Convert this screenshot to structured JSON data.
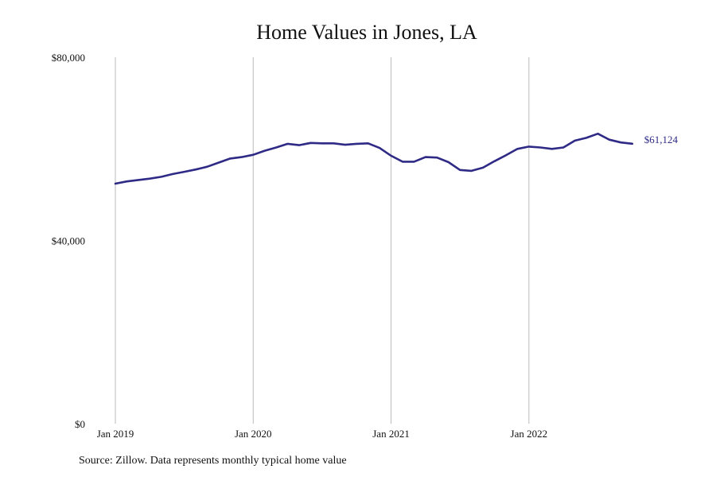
{
  "chart_data": {
    "type": "line",
    "title": "Home Values in Jones, LA",
    "xlabel": "",
    "ylabel": "",
    "source": "Source: Zillow. Data represents monthly typical home value",
    "ylim": [
      0,
      80000
    ],
    "grid": "vertical lines at year ticks",
    "legend": "none",
    "y_ticks": [
      {
        "value": 0,
        "label": "$0"
      },
      {
        "value": 40000,
        "label": "$40,000"
      },
      {
        "value": 80000,
        "label": "$80,000"
      }
    ],
    "x_ticks": [
      {
        "value": "2019-01",
        "label": "Jan 2019"
      },
      {
        "value": "2020-01",
        "label": "Jan 2020"
      },
      {
        "value": "2021-01",
        "label": "Jan 2021"
      },
      {
        "value": "2022-01",
        "label": "Jan 2022"
      }
    ],
    "end_label": "$61,124",
    "line_color": "#2e2a85",
    "grid_color": "#bbbbbb",
    "series": [
      {
        "x": [
          "2019-01",
          "2019-02",
          "2019-03",
          "2019-04",
          "2019-05",
          "2019-06",
          "2019-07",
          "2019-08",
          "2019-09",
          "2019-10",
          "2019-11",
          "2019-12",
          "2020-01",
          "2020-02",
          "2020-03",
          "2020-04",
          "2020-05",
          "2020-06",
          "2020-07",
          "2020-08",
          "2020-09",
          "2020-10",
          "2020-11",
          "2020-12",
          "2021-01",
          "2021-02",
          "2021-03",
          "2021-04",
          "2021-05",
          "2021-06",
          "2021-07",
          "2021-08",
          "2021-09",
          "2021-10",
          "2021-11",
          "2021-12",
          "2022-01",
          "2022-02",
          "2022-03",
          "2022-04",
          "2022-05",
          "2022-06",
          "2022-07",
          "2022-08",
          "2022-09",
          "2022-10"
        ],
        "values": [
          52400,
          52900,
          53200,
          53500,
          53900,
          54500,
          55000,
          55500,
          56100,
          57000,
          57900,
          58200,
          58700,
          59600,
          60300,
          61100,
          60800,
          61300,
          61200,
          61200,
          60900,
          61100,
          61200,
          60200,
          58500,
          57200,
          57200,
          58200,
          58100,
          57100,
          55400,
          55200,
          55900,
          57300,
          58600,
          60000,
          60500,
          60300,
          60000,
          60300,
          61800,
          62400,
          63300,
          62000,
          61400,
          61124
        ]
      }
    ]
  }
}
